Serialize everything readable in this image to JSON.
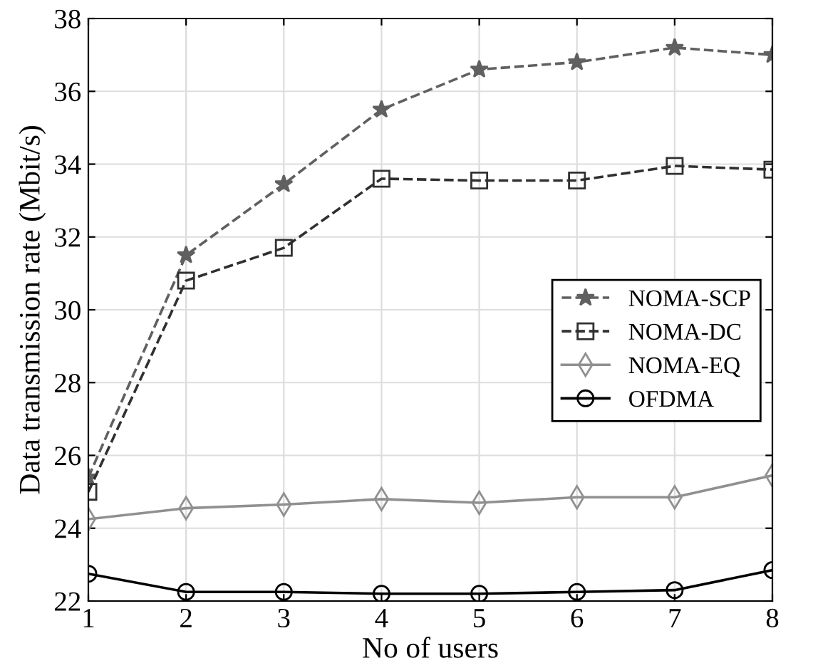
{
  "chart_data": {
    "type": "line",
    "xlabel": "No of users",
    "ylabel": "Data transmission rate (Mbit/s)",
    "x": [
      1,
      2,
      3,
      4,
      5,
      6,
      7,
      8
    ],
    "series": [
      {
        "name": "NOMA-SCP",
        "color": "#606060",
        "marker": "star",
        "line_style": "dashed",
        "values": [
          25.4,
          31.5,
          33.45,
          35.5,
          36.6,
          36.8,
          37.2,
          37.0
        ]
      },
      {
        "name": "NOMA-DC",
        "color": "#303030",
        "marker": "square",
        "line_style": "dashed",
        "values": [
          25.0,
          30.8,
          31.7,
          33.6,
          33.55,
          33.55,
          33.95,
          33.85
        ]
      },
      {
        "name": "NOMA-EQ",
        "color": "#909090",
        "marker": "diamond",
        "line_style": "solid",
        "values": [
          24.25,
          24.55,
          24.65,
          24.8,
          24.7,
          24.85,
          24.85,
          25.45
        ]
      },
      {
        "name": "OFDMA",
        "color": "#000000",
        "marker": "circle",
        "line_style": "solid",
        "values": [
          22.75,
          22.25,
          22.25,
          22.2,
          22.2,
          22.25,
          22.3,
          22.85
        ]
      }
    ],
    "xlim": [
      1,
      8
    ],
    "xticks": [
      1,
      2,
      3,
      4,
      5,
      6,
      7,
      8
    ],
    "ylim": [
      22,
      38
    ],
    "yticks": [
      22,
      24,
      26,
      28,
      30,
      32,
      34,
      36,
      38
    ],
    "grid": true,
    "legend": "right"
  }
}
